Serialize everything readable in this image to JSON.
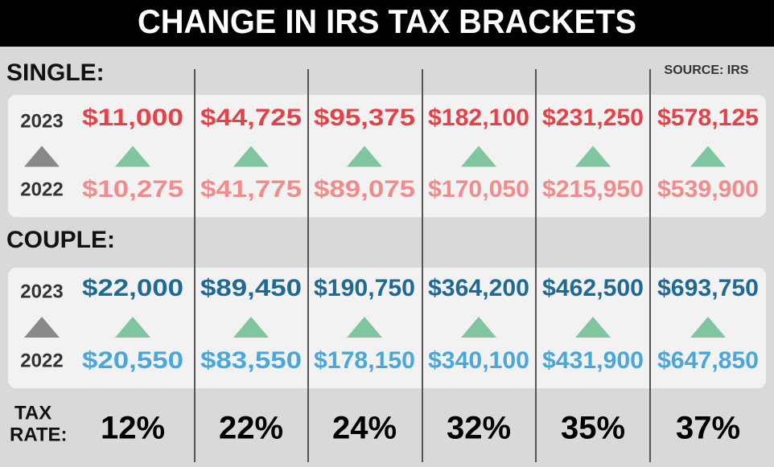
{
  "header": {
    "title": "CHANGE IN IRS TAX BRACKETS"
  },
  "source": "SOURCE: IRS",
  "sections": [
    {
      "label": "SINGLE:",
      "year_new": "2023",
      "year_old": "2022",
      "new": [
        "$11,000",
        "$44,725",
        "$95,375",
        "$182,100",
        "$231,250",
        "$578,125"
      ],
      "old": [
        "$10,275",
        "$41,775",
        "$89,075",
        "$170,050",
        "$215,950",
        "$539,900"
      ]
    },
    {
      "label": "COUPLE:",
      "year_new": "2023",
      "year_old": "2022",
      "new": [
        "$22,000",
        "$89,450",
        "$190,750",
        "$364,200",
        "$462,500",
        "$693,750"
      ],
      "old": [
        "$20,550",
        "$83,550",
        "$178,150",
        "$340,100",
        "$431,900",
        "$647,850"
      ]
    }
  ],
  "tax_rate": {
    "label": [
      "TAX",
      "RATE:"
    ],
    "rates": [
      "12%",
      "22%",
      "24%",
      "32%",
      "35%",
      "37%"
    ]
  }
}
